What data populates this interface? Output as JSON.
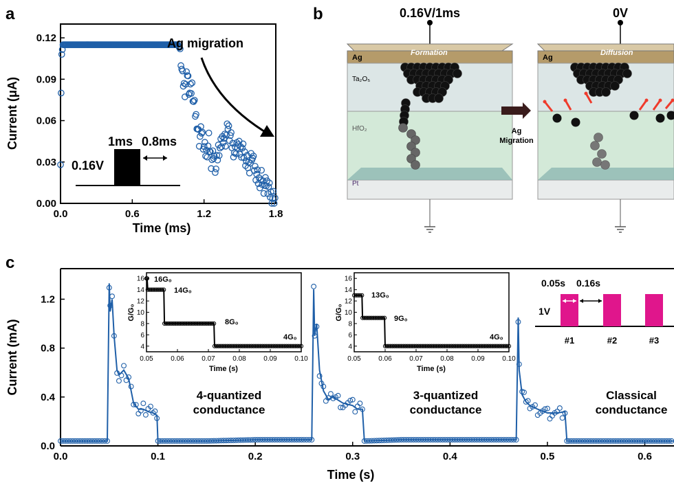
{
  "panels": {
    "a": "a",
    "b": "b",
    "c": "c"
  },
  "colors": {
    "blue": "#1f5fa8",
    "magenta": "#e0168c",
    "arrow_red": "#ef3b2c",
    "black": "#000000"
  },
  "chart_data": [
    {
      "type": "scatter",
      "panel": "a",
      "xlabel": "Time (ms)",
      "ylabel": "Current (μA)",
      "xlim": [
        0,
        1.8
      ],
      "ylim": [
        0,
        0.13
      ],
      "xticks": [
        "0.0",
        "0.6",
        "1.2",
        "1.8"
      ],
      "yticks": [
        "0.00",
        "0.03",
        "0.06",
        "0.09",
        "0.12"
      ],
      "annotations": {
        "migration": "Ag migration",
        "pulse_v": "0.16V",
        "pulse_w": "1ms",
        "gap": "0.8ms"
      },
      "series": [
        {
          "x": [
            0.0,
            0.005,
            0.01,
            0.02,
            0.05,
            0.1,
            0.2,
            0.3,
            0.4,
            0.5,
            0.6,
            0.7,
            0.8,
            0.9,
            0.98,
            1.0,
            1.02,
            1.04,
            1.06,
            1.08,
            1.1,
            1.12,
            1.14,
            1.16,
            1.18,
            1.2,
            1.22,
            1.24,
            1.26,
            1.28,
            1.3,
            1.32,
            1.34,
            1.36,
            1.38,
            1.4,
            1.42,
            1.44,
            1.46,
            1.48,
            1.5,
            1.52,
            1.54,
            1.56,
            1.58,
            1.6,
            1.62,
            1.64,
            1.66,
            1.68,
            1.7,
            1.72,
            1.74,
            1.76,
            1.78,
            1.8
          ],
          "y": [
            0.028,
            0.08,
            0.108,
            0.115,
            0.115,
            0.115,
            0.115,
            0.115,
            0.115,
            0.115,
            0.115,
            0.115,
            0.115,
            0.115,
            0.115,
            0.112,
            0.09,
            0.082,
            0.095,
            0.08,
            0.085,
            0.07,
            0.06,
            0.045,
            0.052,
            0.04,
            0.035,
            0.045,
            0.03,
            0.035,
            0.025,
            0.04,
            0.042,
            0.05,
            0.045,
            0.055,
            0.048,
            0.04,
            0.035,
            0.045,
            0.038,
            0.04,
            0.035,
            0.03,
            0.028,
            0.035,
            0.025,
            0.02,
            0.015,
            0.018,
            0.012,
            0.015,
            0.012,
            0.006,
            0.004,
            0.002
          ]
        }
      ]
    },
    {
      "type": "line",
      "panel": "c",
      "xlabel": "Time (s)",
      "ylabel": "Current (mA)",
      "xlim": [
        0,
        0.63
      ],
      "ylim": [
        0,
        1.45
      ],
      "xticks": [
        "0.0",
        "0.1",
        "0.2",
        "0.3",
        "0.4",
        "0.5",
        "0.6"
      ],
      "yticks": [
        "0.0",
        "0.4",
        "0.8",
        "1.2"
      ],
      "annotations": {
        "q4_l1": "4-quantized",
        "q4_l2": "conductance",
        "q3_l1": "3-quantized",
        "q3_l2": "conductance",
        "cl_l1": "Classical",
        "cl_l2": "conductance"
      },
      "series": [
        {
          "x": [
            0.0,
            0.02,
            0.04,
            0.048,
            0.05,
            0.051,
            0.053,
            0.055,
            0.058,
            0.06,
            0.065,
            0.07,
            0.075,
            0.08,
            0.085,
            0.09,
            0.095,
            0.099,
            0.1,
            0.102,
            0.15,
            0.2,
            0.25,
            0.258,
            0.26,
            0.261,
            0.263,
            0.266,
            0.27,
            0.275,
            0.28,
            0.29,
            0.3,
            0.305,
            0.31,
            0.312,
            0.35,
            0.4,
            0.45,
            0.468,
            0.47,
            0.471,
            0.474,
            0.478,
            0.482,
            0.49,
            0.5,
            0.51,
            0.518,
            0.52,
            0.522,
            0.56,
            0.6,
            0.63
          ],
          "y": [
            0.04,
            0.04,
            0.04,
            0.04,
            1.33,
            1.1,
            1.2,
            0.9,
            0.62,
            0.58,
            0.62,
            0.55,
            0.35,
            0.3,
            0.3,
            0.28,
            0.27,
            0.25,
            0.04,
            0.04,
            0.04,
            0.05,
            0.05,
            0.05,
            1.28,
            0.9,
            1.0,
            0.62,
            0.45,
            0.38,
            0.4,
            0.35,
            0.33,
            0.3,
            0.3,
            0.04,
            0.05,
            0.05,
            0.05,
            0.05,
            1.05,
            0.62,
            0.42,
            0.36,
            0.33,
            0.3,
            0.27,
            0.27,
            0.28,
            0.04,
            0.04,
            0.04,
            0.04,
            0.04
          ]
        }
      ]
    },
    {
      "type": "line",
      "panel": "c-inset-1",
      "xlabel": "Time (s)",
      "ylabel": "G/G₀",
      "xlim": [
        0.05,
        0.1
      ],
      "ylim": [
        3,
        17
      ],
      "xticks": [
        "0.05",
        "0.06",
        "0.07",
        "0.08",
        "0.09",
        "0.10"
      ],
      "yticks": [
        "4",
        "6",
        "8",
        "10",
        "12",
        "14",
        "16"
      ],
      "levels": [
        "16G₀",
        "14G₀",
        "8G₀",
        "4G₀"
      ],
      "series": [
        {
          "x": [
            0.05,
            0.0502,
            0.0504,
            0.0556,
            0.0558,
            0.0718,
            0.072,
            0.1
          ],
          "y": [
            16,
            16,
            14,
            14,
            8,
            8,
            4,
            4
          ]
        }
      ]
    },
    {
      "type": "line",
      "panel": "c-inset-2",
      "xlabel": "Time (s)",
      "ylabel": "G/G₀",
      "xlim": [
        0.05,
        0.1
      ],
      "ylim": [
        3,
        17
      ],
      "xticks": [
        "0.05",
        "0.06",
        "0.07",
        "0.08",
        "0.09",
        "0.10"
      ],
      "yticks": [
        "4",
        "6",
        "8",
        "10",
        "12",
        "14",
        "16"
      ],
      "levels": [
        "13G₀",
        "9G₀",
        "4G₀"
      ],
      "series": [
        {
          "x": [
            0.05,
            0.0525,
            0.0527,
            0.0598,
            0.06,
            0.1
          ],
          "y": [
            13,
            13,
            9,
            9,
            4,
            4
          ]
        }
      ]
    }
  ],
  "diagram": {
    "top_left_label": "0.16V/1ms",
    "top_right_label": "0V",
    "left_top_electrode": "Ag",
    "left_banner": "Formation",
    "right_top_electrode": "Ag",
    "right_banner": "Diffusion",
    "layer_1": "Ta₂O₅",
    "layer_2": "HfO₂",
    "bottom_electrode": "Pt",
    "arrow_label_1": "Ag",
    "arrow_label_2": "Migration"
  },
  "pulse_train": {
    "voltage": "1V",
    "width": "0.05s",
    "interval": "0.16s",
    "pulses": [
      "#1",
      "#2",
      "#3"
    ]
  }
}
